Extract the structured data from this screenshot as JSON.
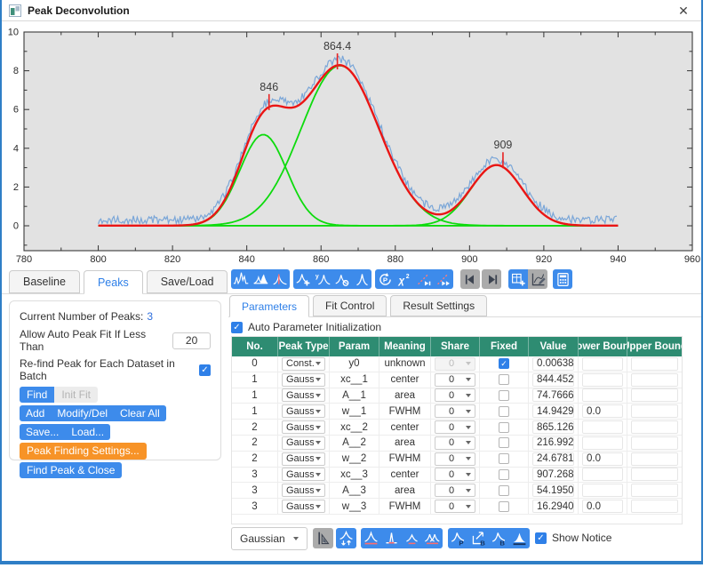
{
  "window": {
    "title": "Peak Deconvolution"
  },
  "chart_data": {
    "type": "line",
    "title": "",
    "xlabel": "",
    "ylabel": "",
    "xlim": [
      780,
      960
    ],
    "ylim": [
      -1.25,
      10
    ],
    "xticks": [
      780,
      800,
      820,
      840,
      860,
      880,
      900,
      920,
      940,
      960
    ],
    "yticks": [
      0,
      2,
      4,
      6,
      8,
      10
    ],
    "x_minor_step": 10,
    "y_minor_step": 1,
    "data_range": [
      800,
      940
    ],
    "baseline_y0": 0.00638,
    "peaks": [
      {
        "center": 844.452449,
        "area": 74.766615,
        "fwhm": 14.942931
      },
      {
        "center": 865.126859,
        "area": 216.992199,
        "fwhm": 24.678168
      },
      {
        "center": 907.268654,
        "area": 54.195005,
        "fwhm": 16.294061
      }
    ],
    "peak_markers": [
      {
        "label": "846",
        "x": 846,
        "y": 6.2
      },
      {
        "label": "864.4",
        "x": 864.4,
        "y": 8.3
      },
      {
        "label": "909",
        "x": 909,
        "y": 3.2
      }
    ],
    "series": [
      {
        "name": "source data",
        "color": "#7aa6d8"
      },
      {
        "name": "cumulative fit",
        "color": "#ea1515"
      },
      {
        "name": "peak components",
        "color": "#0ddb0d"
      }
    ],
    "plot_bg": "#e2e2e2"
  },
  "left_tabs": [
    {
      "label": "Baseline",
      "active": false
    },
    {
      "label": "Peaks",
      "active": true
    },
    {
      "label": "Save/Load",
      "active": false
    }
  ],
  "peaks_panel": {
    "current_label": "Current Number of Peaks:",
    "current_value": "3",
    "auto_fit_label": "Allow Auto Peak Fit If Less Than",
    "auto_fit_value": "20",
    "refind_label": "Re-find Peak for Each Dataset in Batch",
    "refind_checked": true,
    "find": "Find",
    "init_fit": "Init Fit",
    "add": "Add",
    "modify_del": "Modify/Del",
    "clear_all": "Clear All",
    "save": "Save...",
    "load": "Load...",
    "peak_finding_settings": "Peak Finding Settings...",
    "find_peak_close": "Find Peak & Close"
  },
  "right_tabs": [
    {
      "label": "Parameters",
      "active": true
    },
    {
      "label": "Fit Control",
      "active": false
    },
    {
      "label": "Result Settings",
      "active": false
    }
  ],
  "auto_param_label": "Auto Parameter Initialization",
  "auto_param_checked": true,
  "param_table": {
    "columns": [
      "No.",
      "Peak Type",
      "Param",
      "Meaning",
      "Share",
      "Fixed",
      "Value",
      "Lower Bound",
      "Upper Bound"
    ],
    "rows": [
      {
        "no": "0",
        "type": "Const...",
        "param": "y0",
        "meaning": "unknown",
        "share": "0",
        "share_disabled": true,
        "fixed": true,
        "value": "0.00638",
        "lower": "",
        "upper": ""
      },
      {
        "no": "1",
        "type": "Gauss...",
        "param": "xc__1",
        "meaning": "center",
        "share": "0",
        "share_disabled": false,
        "fixed": false,
        "value": "844.452449",
        "lower": "",
        "upper": ""
      },
      {
        "no": "1",
        "type": "Gauss...",
        "param": "A__1",
        "meaning": "area",
        "share": "0",
        "share_disabled": false,
        "fixed": false,
        "value": "74.766615",
        "lower": "",
        "upper": ""
      },
      {
        "no": "1",
        "type": "Gauss...",
        "param": "w__1",
        "meaning": "FWHM",
        "share": "0",
        "share_disabled": false,
        "fixed": false,
        "value": "14.942931",
        "lower": "0.0",
        "upper": ""
      },
      {
        "no": "2",
        "type": "Gauss...",
        "param": "xc__2",
        "meaning": "center",
        "share": "0",
        "share_disabled": false,
        "fixed": false,
        "value": "865.126859",
        "lower": "",
        "upper": ""
      },
      {
        "no": "2",
        "type": "Gauss...",
        "param": "A__2",
        "meaning": "area",
        "share": "0",
        "share_disabled": false,
        "fixed": false,
        "value": "216.992199",
        "lower": "",
        "upper": ""
      },
      {
        "no": "2",
        "type": "Gauss...",
        "param": "w__2",
        "meaning": "FWHM",
        "share": "0",
        "share_disabled": false,
        "fixed": false,
        "value": "24.678168",
        "lower": "0.0",
        "upper": ""
      },
      {
        "no": "3",
        "type": "Gauss...",
        "param": "xc__3",
        "meaning": "center",
        "share": "0",
        "share_disabled": false,
        "fixed": false,
        "value": "907.268654",
        "lower": "",
        "upper": ""
      },
      {
        "no": "3",
        "type": "Gauss...",
        "param": "A__3",
        "meaning": "area",
        "share": "0",
        "share_disabled": false,
        "fixed": false,
        "value": "54.195005",
        "lower": "",
        "upper": ""
      },
      {
        "no": "3",
        "type": "Gauss...",
        "param": "w__3",
        "meaning": "FWHM",
        "share": "0",
        "share_disabled": false,
        "fixed": false,
        "value": "16.294061",
        "lower": "0.0",
        "upper": ""
      }
    ]
  },
  "bottom_bar": {
    "function_select": "Gaussian",
    "show_notice": "Show Notice",
    "show_notice_checked": true
  },
  "toolbars": {
    "top": [
      {
        "name": "find-peaks-icon",
        "style": "blue",
        "group": 1
      },
      {
        "name": "subtract-baseline-icon",
        "style": "blue",
        "group": 1
      },
      {
        "name": "center-peak-icon",
        "style": "blue",
        "group": 1
      },
      {
        "name": "add-peak-icon",
        "style": "blue",
        "group": 2
      },
      {
        "name": "modify-peak-icon",
        "style": "blue",
        "group": 2
      },
      {
        "name": "delete-peak-icon",
        "style": "blue",
        "group": 2
      },
      {
        "name": "single-peak-icon",
        "style": "blue",
        "group": 2
      },
      {
        "name": "reset-parameters-icon",
        "style": "blue",
        "group": 3
      },
      {
        "name": "chi-square-icon",
        "style": "blue",
        "group": 3
      },
      {
        "name": "fit-one-step-icon",
        "style": "blue",
        "group": 3
      },
      {
        "name": "fit-until-converged-icon",
        "style": "blue",
        "group": 3
      },
      {
        "name": "prev-dataset-icon",
        "style": "gray",
        "group": 4
      },
      {
        "name": "next-dataset-icon",
        "style": "gray",
        "group": 5
      },
      {
        "name": "new-worksheet-icon",
        "style": "blue",
        "group": 6
      },
      {
        "name": "graph-preview-icon",
        "style": "gray",
        "group": 6
      },
      {
        "name": "calculator-icon",
        "style": "blue",
        "group": 7
      }
    ],
    "bottom": [
      {
        "name": "sort-preview-icon",
        "style": "gray",
        "group": 1
      },
      {
        "name": "adjust-peak-icon",
        "style": "blue",
        "group": 2
      },
      {
        "name": "show-baseline-icon",
        "style": "blue",
        "group": 3
      },
      {
        "name": "show-center-line-icon",
        "style": "blue",
        "group": 3
      },
      {
        "name": "show-residual-icon",
        "style": "blue",
        "group": 3
      },
      {
        "name": "show-components-icon",
        "style": "blue",
        "group": 3
      },
      {
        "name": "peak-report-icon",
        "style": "blue",
        "group": 4
      },
      {
        "name": "export-peaks-icon",
        "style": "blue",
        "group": 4
      },
      {
        "name": "baseline-report-icon",
        "style": "blue",
        "group": 4
      },
      {
        "name": "integrate-peak-icon",
        "style": "blue",
        "group": 4
      }
    ]
  },
  "accent_colors": {
    "button_blue": "#3d8beb",
    "warning_orange": "#f79327",
    "table_header_green": "#2e8c72",
    "link_blue": "#2f80e8",
    "window_border_blue": "#2e7ec6"
  }
}
